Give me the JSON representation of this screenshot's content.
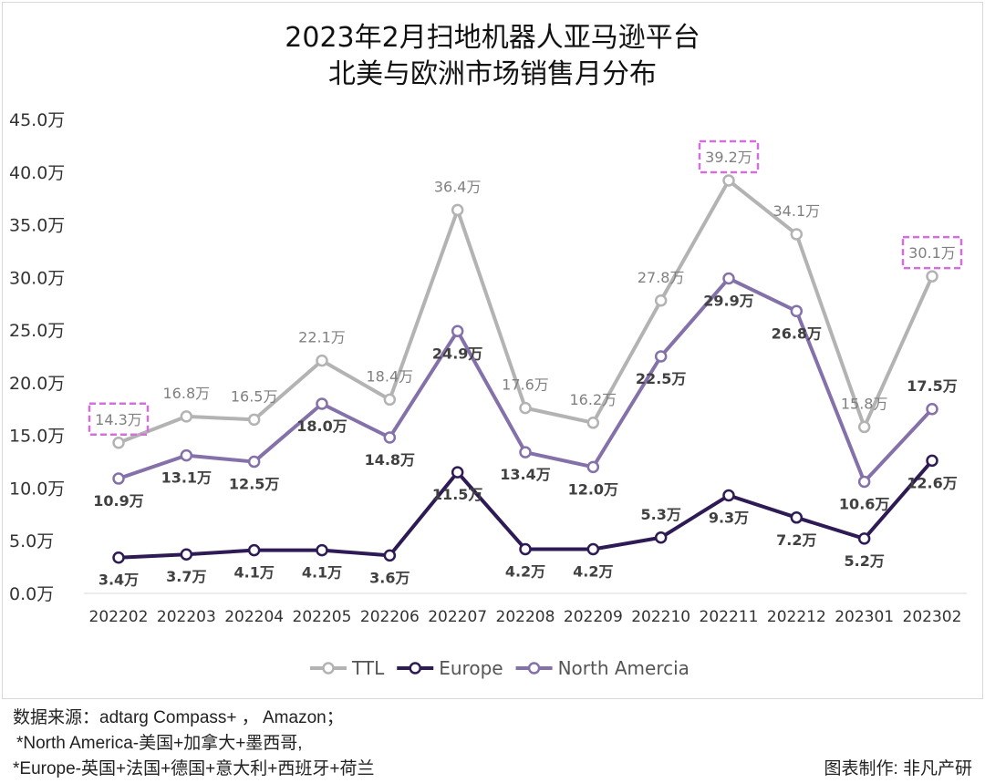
{
  "chart_data": {
    "type": "line",
    "title_lines": [
      "2023年2月扫地机器人亚马逊平台",
      "北美与欧洲市场销售月分布"
    ],
    "categories": [
      "202202",
      "202203",
      "202204",
      "202205",
      "202206",
      "202207",
      "202208",
      "202209",
      "202210",
      "202211",
      "202212",
      "202301",
      "202302"
    ],
    "y_ticks": [
      "0.0万",
      "5.0万",
      "10.0万",
      "15.0万",
      "20.0万",
      "25.0万",
      "30.0万",
      "35.0万",
      "40.0万",
      "45.0万"
    ],
    "ylim": [
      0,
      45
    ],
    "unit": "万",
    "grid": false,
    "legend_position": "bottom",
    "series": [
      {
        "name": "TTL",
        "color": "#b3b3b3",
        "label_color": "#808080",
        "values": [
          14.3,
          16.8,
          16.5,
          22.1,
          18.4,
          36.4,
          17.6,
          16.2,
          27.8,
          39.2,
          34.1,
          15.8,
          30.1
        ],
        "labels": [
          "14.3万",
          "16.8万",
          "16.5万",
          "22.1万",
          "18.4万",
          "36.4万",
          "17.6万",
          "16.2万",
          "27.8万",
          "39.2万",
          "34.1万",
          "15.8万",
          "30.1万"
        ]
      },
      {
        "name": "Europe",
        "color": "#2e1b55",
        "label_color": "#404040",
        "values": [
          3.4,
          3.7,
          4.1,
          4.1,
          3.6,
          11.5,
          4.2,
          4.2,
          5.3,
          9.3,
          7.2,
          5.2,
          12.6
        ],
        "labels": [
          "3.4万",
          "3.7万",
          "4.1万",
          "4.1万",
          "3.6万",
          "11.5万",
          "4.2万",
          "4.2万",
          "5.3万",
          "9.3万",
          "7.2万",
          "5.2万",
          "12.6万"
        ]
      },
      {
        "name": "North Amercia",
        "color": "#8571aa",
        "label_color": "#404040",
        "values": [
          10.9,
          13.1,
          12.5,
          18.0,
          14.8,
          24.9,
          13.4,
          12.0,
          22.5,
          29.9,
          26.8,
          10.6,
          17.5
        ],
        "labels": [
          "10.9万",
          "13.1万",
          "12.5万",
          "18.0万",
          "14.8万",
          "24.9万",
          "13.4万",
          "12.0万",
          "22.5万",
          "29.9万",
          "26.8万",
          "10.6万",
          "17.5万"
        ]
      }
    ],
    "highlighted": [
      {
        "series": "TTL",
        "category": "202202"
      },
      {
        "series": "TTL",
        "category": "202211"
      },
      {
        "series": "TTL",
        "category": "202302"
      }
    ],
    "highlight_color": "#d36fdc"
  },
  "footer": {
    "source": "数据来源：adtarg Compass+ ， Amazon；",
    "note_na": "*North America-美国+加拿大+墨西哥,",
    "note_eu": "*Europe-英国+法国+德国+意大利+西班牙+荷兰",
    "credit": "图表制作: 非凡产研"
  }
}
